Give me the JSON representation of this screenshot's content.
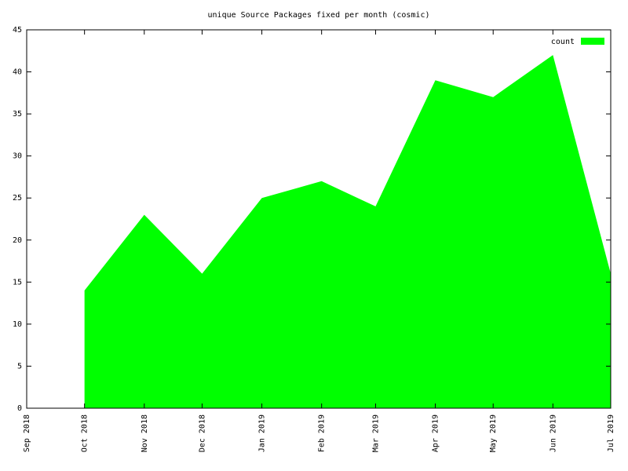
{
  "chart_data": {
    "type": "area",
    "title": "unique Source Packages fixed per month (cosmic)",
    "x": [
      "Oct 2018",
      "Nov 2018",
      "Dec 2018",
      "Jan 2019",
      "Feb 2019",
      "Mar 2019",
      "Apr 2019",
      "May 2019",
      "Jun 2019",
      "Jul 2019"
    ],
    "series": [
      {
        "name": "count",
        "color": "#00ff00",
        "values": [
          14,
          23,
          16,
          25,
          27,
          24,
          39,
          37,
          42,
          16
        ]
      }
    ],
    "xlim": [
      "Sep 2018",
      "Jul 2019"
    ],
    "xticks": [
      "Sep 2018",
      "Oct 2018",
      "Nov 2018",
      "Dec 2018",
      "Jan 2019",
      "Feb 2019",
      "Mar 2019",
      "Apr 2019",
      "May 2019",
      "Jun 2019",
      "Jul 2019"
    ],
    "ylim": [
      0,
      45
    ],
    "yticks": [
      0,
      5,
      10,
      15,
      20,
      25,
      30,
      35,
      40,
      45
    ],
    "legend": "top-right"
  }
}
